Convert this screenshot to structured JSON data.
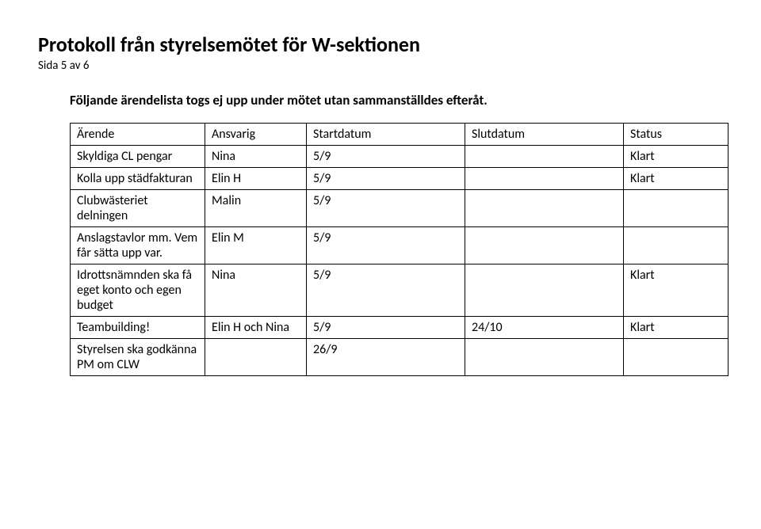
{
  "header": {
    "title": "Protokoll från styrelsemötet för W-sektionen",
    "page_indicator": "Sida 5 av 6"
  },
  "intro": "Följande ärendelista togs ej upp under mötet utan sammanställdes efteråt.",
  "table": {
    "columns": [
      "Ärende",
      "Ansvarig",
      "Startdatum",
      "Slutdatum",
      "Status"
    ],
    "rows": [
      {
        "arende": "Skyldiga CL pengar",
        "ansvarig": "Nina",
        "start": "5/9",
        "slut": "",
        "status": "Klart"
      },
      {
        "arende": "Kolla upp städfakturan",
        "ansvarig": "Elin H",
        "start": "5/9",
        "slut": "",
        "status": "Klart"
      },
      {
        "arende": "Clubwästeriet delningen",
        "ansvarig": "Malin",
        "start": "5/9",
        "slut": "",
        "status": ""
      },
      {
        "arende": "Anslagstavlor mm. Vem får sätta upp var.",
        "ansvarig": "Elin M",
        "start": "5/9",
        "slut": "",
        "status": ""
      },
      {
        "arende": "Idrottsnämnden ska få eget konto och egen budget",
        "ansvarig": "Nina",
        "start": "5/9",
        "slut": "",
        "status": "Klart"
      },
      {
        "arende": "Teambuilding!",
        "ansvarig": "Elin H och Nina",
        "start": "5/9",
        "slut": "24/10",
        "status": "Klart"
      },
      {
        "arende": "Styrelsen ska godkänna PM om CLW",
        "ansvarig": "",
        "start": "26/9",
        "slut": "",
        "status": ""
      }
    ]
  }
}
